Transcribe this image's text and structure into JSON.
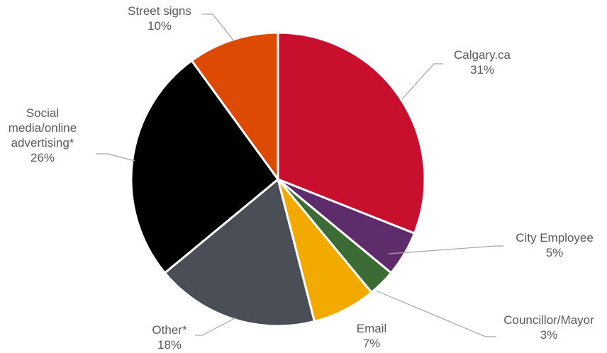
{
  "chart_data": {
    "type": "pie",
    "slices": [
      {
        "label": "Calgary.ca",
        "value": 31,
        "value_label": "31%",
        "color": "#c8102e"
      },
      {
        "label": "City Employee",
        "value": 5,
        "value_label": "5%",
        "color": "#5f2c6b"
      },
      {
        "label": "Councillor/Mayor",
        "value": 3,
        "value_label": "3%",
        "color": "#3d6b35"
      },
      {
        "label": "Email",
        "value": 7,
        "value_label": "7%",
        "color": "#f2a900"
      },
      {
        "label": "Other*",
        "value": 18,
        "value_label": "18%",
        "color": "#4a4f57"
      },
      {
        "label": "Social media/online advertising*",
        "value": 26,
        "value_label": "26%",
        "color": "#000000"
      },
      {
        "label": "Street signs",
        "value": 10,
        "value_label": "10%",
        "color": "#dd4a04"
      }
    ]
  }
}
